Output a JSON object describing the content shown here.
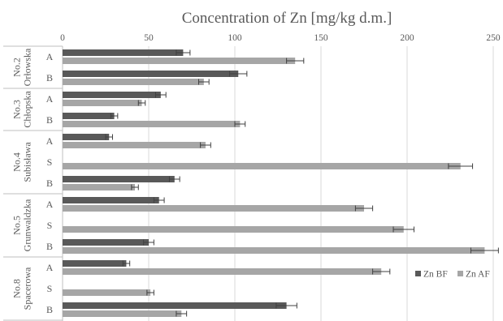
{
  "chart_data": {
    "type": "bar",
    "orientation": "horizontal",
    "title": "Concentration of Zn [mg/kg d.m.]",
    "x_axis": {
      "min": 0,
      "max": 250,
      "ticks": [
        "0",
        "50",
        "100",
        "150",
        "200",
        "250"
      ],
      "position": "top"
    },
    "grid": true,
    "legend": {
      "position": "bottom-right"
    },
    "series": [
      {
        "name": "Zn BF",
        "color": "#595959"
      },
      {
        "name": "Zn AF",
        "color": "#a6a6a6"
      }
    ],
    "groups": [
      {
        "label_lines": [
          "No.2",
          "Orłowska"
        ],
        "rows": [
          {
            "label": "A",
            "bf": 70,
            "bf_err": 4,
            "af": 135,
            "af_err": 5
          },
          {
            "label": "B",
            "bf": 102,
            "bf_err": 5,
            "af": 82,
            "af_err": 3
          }
        ]
      },
      {
        "label_lines": [
          "No.3",
          "Chłopska"
        ],
        "rows": [
          {
            "label": "A",
            "bf": 57,
            "bf_err": 3,
            "af": 46,
            "af_err": 2
          },
          {
            "label": "B",
            "bf": 30,
            "bf_err": 2,
            "af": 103,
            "af_err": 3
          }
        ]
      },
      {
        "label_lines": [
          "No.4",
          "Subisława"
        ],
        "rows": [
          {
            "label": "A",
            "bf": 27,
            "bf_err": 2,
            "af": 83,
            "af_err": 3
          },
          {
            "label": "S",
            "bf": null,
            "bf_err": null,
            "af": 231,
            "af_err": 7
          },
          {
            "label": "B",
            "bf": 65,
            "bf_err": 3,
            "af": 42,
            "af_err": 2
          }
        ]
      },
      {
        "label_lines": [
          "No.5",
          "Grunwaldzka"
        ],
        "rows": [
          {
            "label": "A",
            "bf": 56,
            "bf_err": 3,
            "af": 175,
            "af_err": 5
          },
          {
            "label": "S",
            "bf": null,
            "bf_err": null,
            "af": 198,
            "af_err": 6
          },
          {
            "label": "B",
            "bf": 50,
            "bf_err": 3,
            "af": 245,
            "af_err": 8
          }
        ]
      },
      {
        "label_lines": [
          "No.8",
          "Spacerowa"
        ],
        "rows": [
          {
            "label": "A",
            "bf": 37,
            "bf_err": 2,
            "af": 185,
            "af_err": 5
          },
          {
            "label": "S",
            "bf": null,
            "bf_err": null,
            "af": 51,
            "af_err": 2
          },
          {
            "label": "B",
            "bf": 130,
            "bf_err": 6,
            "af": 69,
            "af_err": 3
          }
        ]
      }
    ]
  }
}
